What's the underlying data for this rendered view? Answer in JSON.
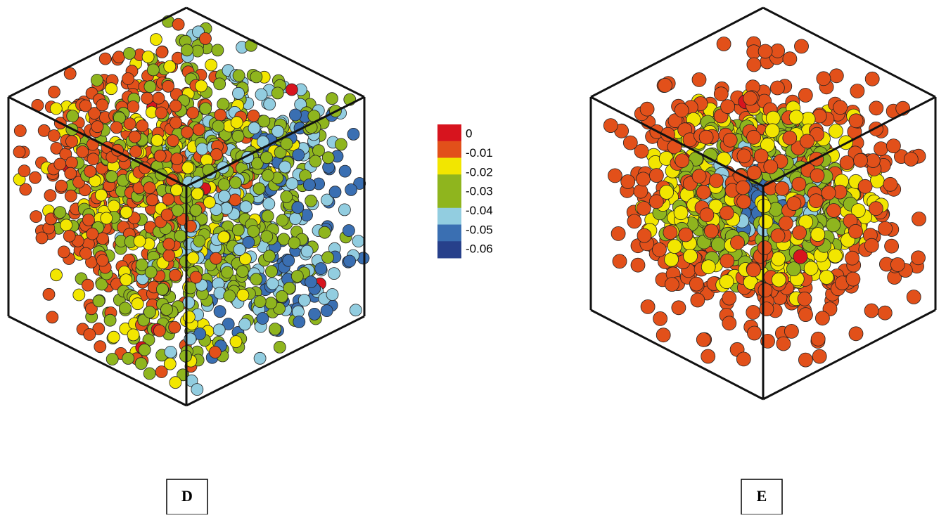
{
  "colorbar": {
    "labels": [
      "0",
      "-0.01",
      "-0.02",
      "-0.03",
      "-0.04",
      "-0.05",
      "-0.06"
    ],
    "colors": [
      "#d7141e",
      "#e2501a",
      "#f2e600",
      "#8fb51e",
      "#8fb51e",
      "#92cde0",
      "#3a6fb2",
      "#27408b"
    ]
  },
  "panels": [
    {
      "label": "D"
    },
    {
      "label": "E"
    }
  ]
}
